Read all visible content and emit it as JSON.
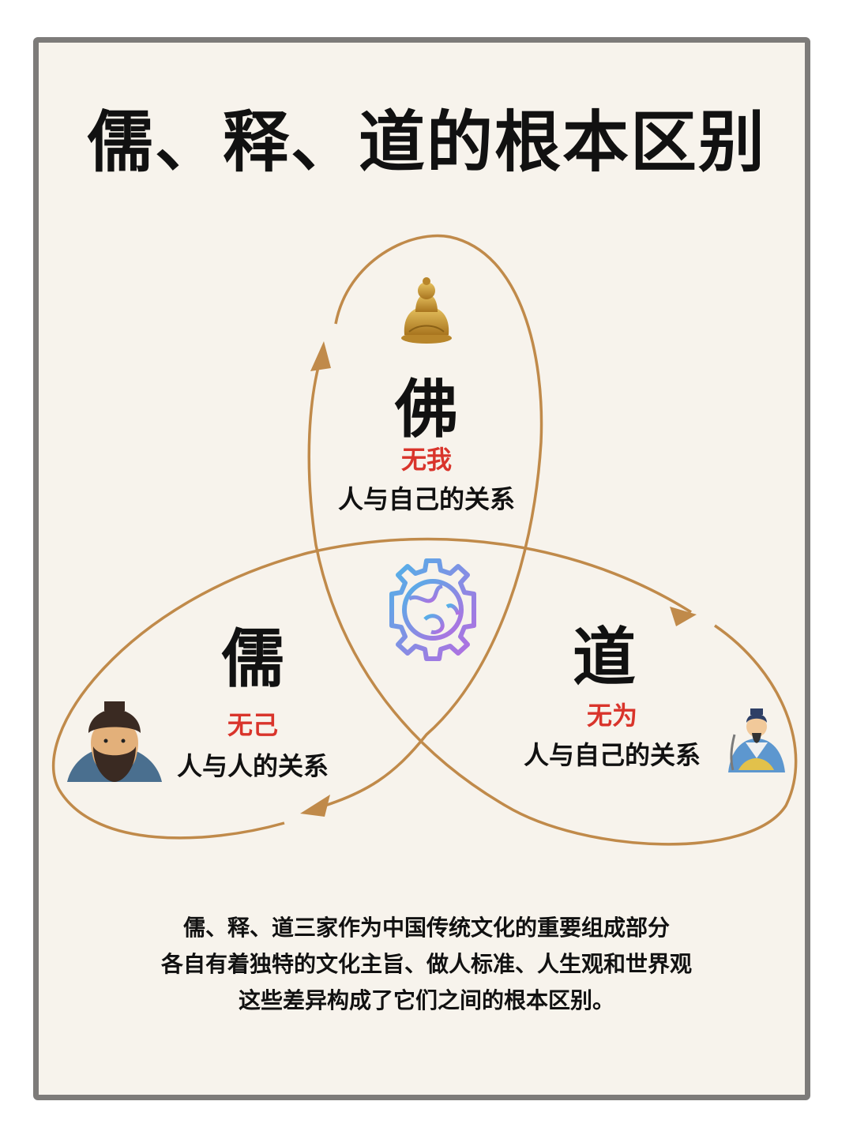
{
  "title": "儒、释、道的根本区别",
  "buddhism": {
    "name": "佛",
    "principle": "无我",
    "relation": "人与自己的关系",
    "icon": "buddha-statue-icon"
  },
  "confucianism": {
    "name": "儒",
    "principle": "无己",
    "relation": "人与人的关系",
    "icon": "confucius-portrait-icon"
  },
  "taoism": {
    "name": "道",
    "principle": "无为",
    "relation": "人与自己的关系",
    "icon": "taoist-sage-icon"
  },
  "center_icon": "globe-gear-icon",
  "description": [
    "儒、释、道三家作为中国传统文化的重要组成部分",
    "各自有着独特的文化主旨、做人标准、人生观和世界观",
    "这些差异构成了它们之间的根本区别。"
  ],
  "colors": {
    "loop": "#c08a4a",
    "accent": "#d9342b",
    "gear_start": "#4fb3e8",
    "gear_end": "#b66be0"
  }
}
